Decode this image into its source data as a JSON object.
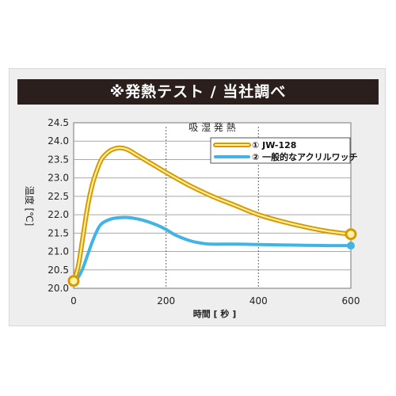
{
  "chart_data": {
    "type": "line",
    "title": "※発熱テスト / 当社調べ",
    "annotation": "吸 湿 発 熱",
    "xlabel": "時間 [ 秒 ]",
    "ylabel": "温度 [℃]",
    "xlim": [
      0,
      600
    ],
    "ylim": [
      20.0,
      24.5
    ],
    "xticks": [
      "0",
      "200",
      "400",
      "600"
    ],
    "yticks": [
      "20.0",
      "20.5",
      "21.0",
      "21.5",
      "22.0",
      "22.5",
      "23.0",
      "23.5",
      "24.0",
      "24.5"
    ],
    "grid": true,
    "legend_position": "top-right",
    "series": [
      {
        "name": "① JW-128",
        "color": "#f0c21a",
        "x": [
          0,
          10,
          20,
          30,
          40,
          50,
          60,
          70,
          80,
          90,
          100,
          110,
          120,
          140,
          160,
          180,
          200,
          250,
          300,
          350,
          400,
          450,
          500,
          550,
          600
        ],
        "y": [
          20.2,
          20.6,
          21.4,
          22.2,
          22.8,
          23.2,
          23.5,
          23.65,
          23.75,
          23.8,
          23.82,
          23.8,
          23.75,
          23.6,
          23.45,
          23.3,
          23.15,
          22.8,
          22.5,
          22.25,
          22.0,
          21.82,
          21.67,
          21.55,
          21.47
        ]
      },
      {
        "name": "② 一般的なアクリルワッチ",
        "color": "#42b3e5",
        "x": [
          0,
          10,
          20,
          30,
          40,
          50,
          60,
          80,
          100,
          120,
          150,
          180,
          200,
          220,
          250,
          280,
          300,
          350,
          400,
          450,
          500,
          550,
          600
        ],
        "y": [
          20.2,
          20.3,
          20.55,
          20.9,
          21.25,
          21.55,
          21.75,
          21.88,
          21.92,
          21.92,
          21.85,
          21.72,
          21.6,
          21.45,
          21.3,
          21.22,
          21.2,
          21.2,
          21.19,
          21.18,
          21.17,
          21.16,
          21.16
        ]
      }
    ]
  }
}
